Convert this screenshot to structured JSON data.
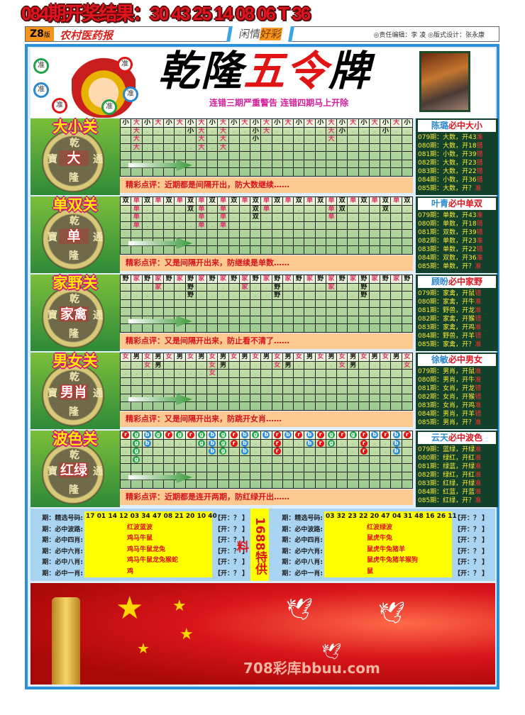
{
  "result_title": "084期开奖结果：30 43 25 14 08 06 T 36",
  "header": {
    "version": "Z8",
    "version_suffix": "版",
    "paper": "农村医药报",
    "column_a": "闲情",
    "column_b": "好彩",
    "credits": "◎责任编辑：李 凌  ◎版式设计：张永康"
  },
  "banner": {
    "title_a": "乾隆",
    "title_b": "五令",
    "title_c": "牌",
    "slogan": "连错三期严重警告 连错四期马上开除",
    "ball_label": "准",
    "balls": [
      "#22a04a",
      "#2a87d0",
      "#e01414",
      "#e01414",
      "#2a87d0",
      "#22a04a"
    ]
  },
  "watermark": "708彩库bbuu.com",
  "colors": {
    "r": "#e01414",
    "g": "#1ea64a",
    "b": "#2a8fe0",
    "big": "#e0306a",
    "small": "#111111"
  },
  "sections": [
    {
      "label": "大小关",
      "coin_center": "大",
      "coin_top": "乾",
      "coin_left": "寶",
      "coin_right": "通",
      "coin_bottom": "隆",
      "hot": "大",
      "grid": [
        "小大小大小大小大小大小大小大小大小大小大小大小大小大小",
        ".大....小大.大..小大.....大小...小..",
        ".大.....大.大..小......大.......",
        ".大.....大.大"
      ],
      "comment": "精彩点评：近期都是间隔开出，防大数继续……",
      "expert": "陈璐",
      "target": "必中大小",
      "records": [
        [
          "079期：大数，开43",
          "准"
        ],
        [
          "080期：大数，开18",
          "错"
        ],
        [
          "081期：小数，开39",
          "错"
        ],
        [
          "082期：大数，开23",
          "错"
        ],
        [
          "083期：大数，开22",
          "错"
        ],
        [
          "084期：小数，开36",
          "错"
        ],
        [
          "085期：大数，开？",
          "准"
        ]
      ]
    },
    {
      "label": "单双关",
      "coin_center": "单",
      "coin_top": "乾",
      "coin_left": "寶",
      "coin_right": "通",
      "coin_bottom": "隆",
      "hot": "单",
      "grid": [
        "双单双单双单双单双单双单双单双单双单双单双单双单双单双",
        ".单....双单.单..双单.....单双...双..",
        ".单.....单.单..双......单.......",
        ".单.....单.单"
      ],
      "comment": "精彩点评：又是间隔开出来，防继续是单数……",
      "expert": "叶青",
      "target": "必中单双",
      "records": [
        [
          "079期：单数，开43",
          "准"
        ],
        [
          "080期：单数，开18",
          "错"
        ],
        [
          "081期：双数，开39",
          "错"
        ],
        [
          "082期：单数，开23",
          "准"
        ],
        [
          "083期：单数，开22",
          "错"
        ],
        [
          "084期：双数，开36",
          "准"
        ],
        [
          "085期：单数，开？",
          "准"
        ]
      ]
    },
    {
      "label": "家野关",
      "coin_center": "家禽",
      "coin_top": "乾",
      "coin_left": "寶",
      "coin_right": "通",
      "coin_bottom": "隆",
      "hot": "家",
      "grid": [
        "野家野家野家野家野家野家野家野家野家野家野家野家野家野",
        "...家..野....家..野....家..野",
        "......野.......野.......野"
      ],
      "comment": "精彩点评：又是间隔开出来，防止看不清了……",
      "expert": "顾盼",
      "target": "必中家野",
      "records": [
        [
          "079期：家禽，开鼠",
          "错"
        ],
        [
          "080期：家禽，开牛",
          "准"
        ],
        [
          "081期：野兽，开龙",
          "准"
        ],
        [
          "082期：家禽，开猴",
          "错"
        ],
        [
          "083期：家禽，开鸡",
          "准"
        ],
        [
          "084期：野兽，开羊",
          "错"
        ],
        [
          "085期：家禽，开？",
          "准"
        ]
      ]
    },
    {
      "label": "男女关",
      "coin_center": "男肖",
      "coin_top": "乾",
      "coin_left": "寶",
      "coin_right": "通",
      "coin_bottom": "隆",
      "hot": "女",
      "grid": [
        "女男女男女男女男女男女男女男女男女男女男女男女男女男女",
        "..女男....女男....女男....女男....女",
        "........女"
      ],
      "comment": "精彩点评：又是间隔开出来，防跳开女肖……",
      "expert": "徐敏",
      "target": "必中男女",
      "records": [
        [
          "079期：男肖，开鼠",
          "准"
        ],
        [
          "080期：男肖，开牛",
          "准"
        ],
        [
          "081期：女肖，开龙",
          "错"
        ],
        [
          "082期：女肖，开猴",
          "错"
        ],
        [
          "083期：女肖，开鸡",
          "准"
        ],
        [
          "084期：男肖，开羊",
          "错"
        ],
        [
          "085期：男肖，开？",
          "准"
        ]
      ]
    },
    {
      "label": "波色关",
      "coin_center": "红绿",
      "coin_top": "乾",
      "coin_left": "寶",
      "coin_right": "通",
      "coin_bottom": "隆",
      "hot": "",
      "grid": [
        "rgbgrgrgbgrbgbrbrbrgrgrbrbr",
        ".gb....gbgrb..r..brg..r..b",
        ".g......bg.b..r.......r..b",
        ".g"
      ],
      "comment": "精彩点评：近期都是连开两期，防红绿开出……",
      "expert": "云天",
      "target": "必中波色",
      "records": [
        [
          "079期：蓝绿，开绿",
          "准"
        ],
        [
          "080期：绿红，开红",
          "准"
        ],
        [
          "081期：绿蓝，开绿",
          "准"
        ],
        [
          "082期：绿红，开红",
          "准"
        ],
        [
          "083期：红绿，开绿",
          "准"
        ],
        [
          "084期：红蓝，开蓝",
          "准"
        ],
        [
          "085期：红绿，开？",
          "准"
        ]
      ]
    }
  ],
  "tables": [
    {
      "rows": [
        [
          "期：精选号码:",
          "17 01 14 12 03 34 47 08 21 20 10 40",
          "【开：？ 】"
        ],
        [
          "期：必中波路:",
          "红波蓝波",
          "【开：？ 】"
        ],
        [
          "期：必中四肖:",
          "鸡马牛鼠",
          "【开：？ 】"
        ],
        [
          "期：必中六肖:",
          "鸡马牛鼠龙兔",
          "【开：？ 】"
        ],
        [
          "期：必中八肖:",
          "鸡马牛鼠龙兔猴蛇",
          "【开：？ 】"
        ],
        [
          "期：必中一肖:",
          "鸡",
          "【开：？ 】"
        ]
      ]
    },
    {
      "rows": [
        [
          "期：精选号码:",
          "03 32 23 22 20 47 04 31 48 16 26 11",
          "【开：？ 】"
        ],
        [
          "期：必中波路:",
          "红波绿波",
          "【开：？ 】"
        ],
        [
          "期：必中四肖:",
          "鼠虎牛兔",
          "【开：？ 】"
        ],
        [
          "期：必中六肖:",
          "鼠虎牛兔猪羊",
          "【开：？ 】"
        ],
        [
          "期：必中八肖:",
          "鼠虎牛兔猪羊猴狗",
          "【开：？ 】"
        ],
        [
          "期：必中一肖:",
          "鼠",
          "【开：？ 】"
        ]
      ]
    }
  ],
  "special": "1688特供料"
}
